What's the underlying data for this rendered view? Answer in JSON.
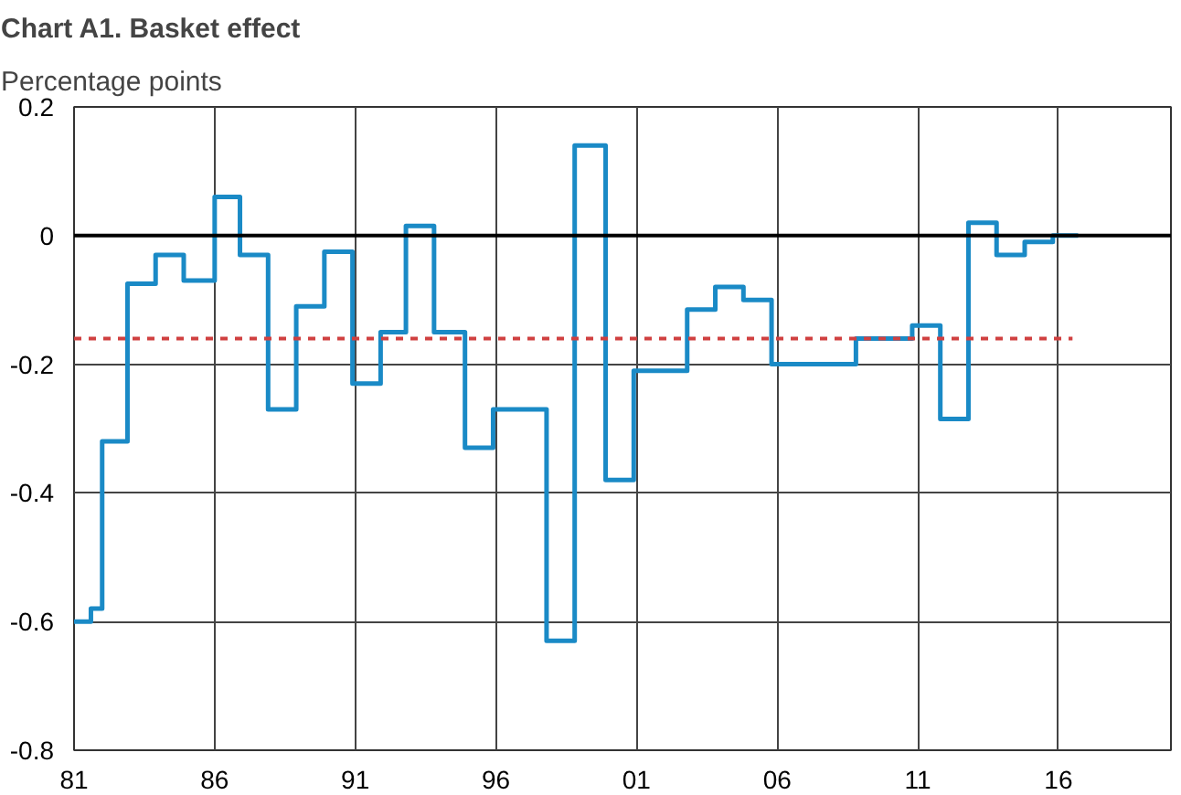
{
  "chart_data": {
    "type": "step",
    "title": "Chart A1. Basket effect",
    "subtitle": "Percentage points",
    "series": [
      {
        "color": "#1a8ac6",
        "x": [
          1981.0,
          1981.6,
          1982.0,
          1982.9,
          1983.9,
          1984.9,
          1986.0,
          1986.9,
          1987.9,
          1988.9,
          1989.9,
          1990.9,
          1991.9,
          1992.8,
          1993.8,
          1994.9,
          1995.9,
          1997.8,
          1998.8,
          1999.9,
          2000.9,
          2002.8,
          2003.8,
          2004.8,
          2005.8,
          2008.8,
          2010.8,
          2011.8,
          2012.8,
          2013.8,
          2014.8,
          2015.8,
          2016.7
        ],
        "values": [
          -0.6,
          -0.58,
          -0.32,
          -0.075,
          -0.03,
          -0.07,
          0.06,
          -0.03,
          -0.27,
          -0.11,
          -0.025,
          -0.23,
          -0.15,
          0.015,
          -0.15,
          -0.33,
          -0.27,
          -0.63,
          0.14,
          -0.38,
          -0.21,
          -0.115,
          -0.08,
          -0.1,
          -0.2,
          -0.16,
          -0.14,
          -0.285,
          0.02,
          -0.03,
          -0.01,
          0.0,
          0.0
        ]
      },
      {
        "type": "line",
        "color": "#d04040",
        "line_style": "dashed",
        "x": [
          1981.0,
          2016.5
        ],
        "values": [
          -0.16,
          -0.16
        ]
      }
    ],
    "ref_lines": [
      {
        "axis": "y",
        "value": 0,
        "color": "#000000"
      }
    ],
    "xlim": [
      1981,
      2020
    ],
    "xticks": [
      {
        "value": 1981,
        "label": "81"
      },
      {
        "value": 1986,
        "label": "86"
      },
      {
        "value": 1991,
        "label": "91"
      },
      {
        "value": 1996,
        "label": "96"
      },
      {
        "value": 2001,
        "label": "01"
      },
      {
        "value": 2006,
        "label": "06"
      },
      {
        "value": 2011,
        "label": "11"
      },
      {
        "value": 2016,
        "label": "16"
      }
    ],
    "ylim": [
      -0.8,
      0.2
    ],
    "yticks": [
      {
        "value": -0.8,
        "label": "-0.8"
      },
      {
        "value": -0.6,
        "label": "-0.6"
      },
      {
        "value": -0.4,
        "label": "-0.4"
      },
      {
        "value": -0.2,
        "label": "-0.2"
      },
      {
        "value": 0,
        "label": "0"
      },
      {
        "value": 0.2,
        "label": "0.2"
      }
    ],
    "grid": true
  }
}
